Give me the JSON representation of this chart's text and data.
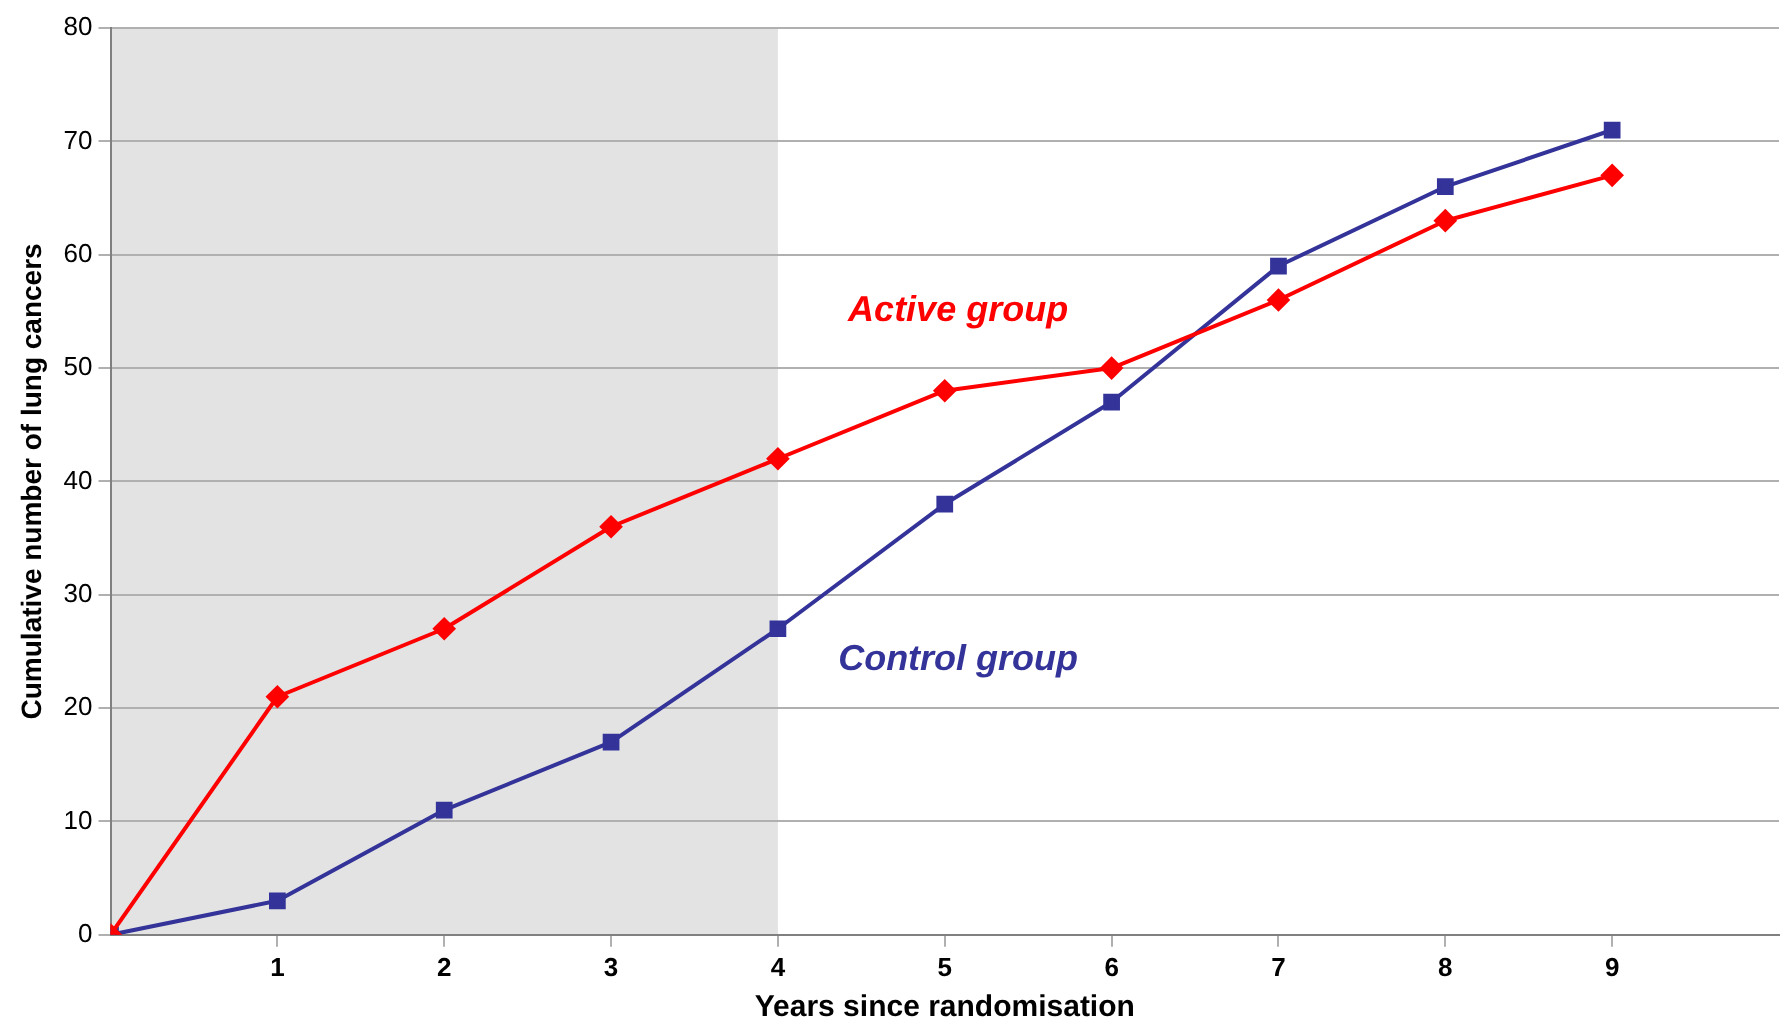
{
  "chart_data": {
    "type": "line",
    "xlabel": "Years since randomisation",
    "ylabel": "Cumulative number of lung cancers",
    "x": [
      0,
      1,
      2,
      3,
      4,
      5,
      6,
      7,
      8,
      9
    ],
    "series": [
      {
        "name": "Active group",
        "color": "#ff0000",
        "marker": "diamond",
        "values": [
          0,
          21,
          27,
          36,
          42,
          48,
          50,
          56,
          63,
          67
        ]
      },
      {
        "name": "Control group",
        "color": "#333399",
        "marker": "square",
        "values": [
          0,
          3,
          11,
          17,
          27,
          38,
          47,
          59,
          66,
          71
        ]
      }
    ],
    "xlim": [
      0,
      10
    ],
    "xticks": [
      1,
      2,
      3,
      4,
      5,
      6,
      7,
      8,
      9
    ],
    "ylim": [
      0,
      80
    ],
    "yticks": [
      0,
      10,
      20,
      30,
      40,
      50,
      60,
      70,
      80
    ],
    "grid": "y",
    "legend": false,
    "line_style": "solid",
    "bands": [
      {
        "axis": "x",
        "from": 0,
        "to": 4,
        "color": "#e3e3e3"
      }
    ]
  }
}
